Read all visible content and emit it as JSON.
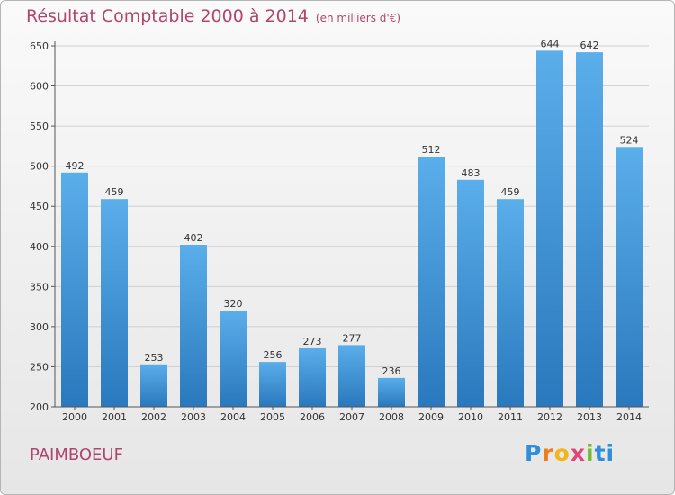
{
  "title": "Résultat Comptable 2000 à 2014",
  "subtitle": "(en milliers d'€)",
  "place": "PAIMBOEUF",
  "logo": {
    "text": [
      "P",
      "r",
      "o",
      "x",
      "i",
      "ti"
    ]
  },
  "colors": {
    "title": "#b0456e",
    "bar_top": "#5aaeea",
    "bar_bottom": "#2a78bd",
    "grid": "#d0d0d0",
    "axis": "#555555"
  },
  "chart_data": {
    "type": "bar",
    "categories": [
      "2000",
      "2001",
      "2002",
      "2003",
      "2004",
      "2005",
      "2006",
      "2007",
      "2008",
      "2009",
      "2010",
      "2011",
      "2012",
      "2013",
      "2014"
    ],
    "series": [
      {
        "values": [
          492,
          459,
          253,
          402,
          320,
          256,
          273,
          277,
          236,
          512,
          483,
          459,
          644,
          642,
          524
        ]
      }
    ],
    "data_labels": [
      "492",
      "459",
      "253",
      "402",
      "320",
      "256",
      "273",
      "277",
      "236",
      "512",
      "483",
      "459",
      "644",
      "642",
      "524"
    ],
    "ylim": [
      200,
      650
    ],
    "yticks": [
      200,
      250,
      300,
      350,
      400,
      450,
      500,
      550,
      600,
      650
    ],
    "grid": true,
    "legend": "none"
  }
}
